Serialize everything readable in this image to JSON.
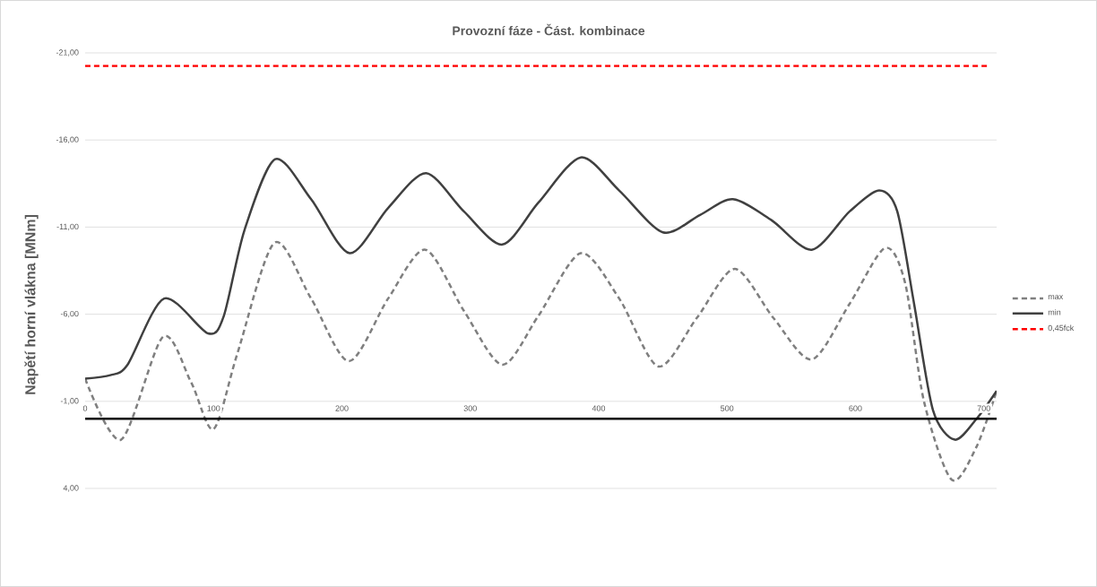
{
  "chart_data": {
    "type": "line",
    "title": "Provozní fáze - Část. kombinace",
    "ylabel": "Napětí horní vlákna [MNm]",
    "xlim": [
      0,
      710
    ],
    "xticks": [
      0,
      100,
      200,
      300,
      400,
      500,
      600,
      700
    ],
    "ylim": [
      4,
      -21
    ],
    "yticks": [
      {
        "value": -21,
        "label": "-21,00"
      },
      {
        "value": -16,
        "label": "-16,00"
      },
      {
        "value": -11,
        "label": "-11,00"
      },
      {
        "value": -6,
        "label": "-6,00"
      },
      {
        "value": -1,
        "label": "-1,00"
      },
      {
        "value": 4,
        "label": "4,00"
      }
    ],
    "grid": "y",
    "legend": "right",
    "series": [
      {
        "name": "max",
        "color": "#7f7f7f",
        "line_style": "dashed",
        "x": [
          0,
          28,
          60.6,
          82.5,
          100,
          118.8,
          147.5,
          176,
          205.5,
          236,
          265,
          295,
          325,
          353,
          386,
          416,
          446.5,
          476.6,
          506,
          536,
          566,
          595.5,
          623,
          638.7,
          653.4,
          675,
          694.4,
          710
        ],
        "values": [
          -2.3,
          1.2,
          -4.7,
          -2.1,
          0.6,
          -3.8,
          -10.1,
          -6.9,
          -3.3,
          -6.9,
          -9.7,
          -6.2,
          -3.1,
          -5.9,
          -9.5,
          -6.9,
          -3.0,
          -5.8,
          -8.6,
          -5.8,
          -3.4,
          -6.6,
          -9.8,
          -7.8,
          -1.0,
          3.5,
          1.6,
          -1.6
        ]
      },
      {
        "name": "min",
        "color": "#404040",
        "line_style": "solid",
        "x": [
          0,
          19.6,
          33,
          61.5,
          95.7,
          108,
          124,
          148,
          176,
          206,
          236,
          265.6,
          295,
          325,
          353,
          386,
          416,
          450,
          479,
          504.6,
          534.6,
          566,
          595.5,
          618.5,
          632.6,
          645.7,
          660.4,
          677.4,
          694.4,
          710
        ],
        "values": [
          -2.3,
          -2.5,
          -3.1,
          -6.9,
          -4.9,
          -5.9,
          -10.8,
          -14.9,
          -12.6,
          -9.5,
          -12.1,
          -14.1,
          -11.9,
          -10.0,
          -12.4,
          -15.0,
          -13.1,
          -10.7,
          -11.7,
          -12.6,
          -11.4,
          -9.7,
          -11.9,
          -13.1,
          -11.9,
          -6.6,
          -0.5,
          1.2,
          0.0,
          -1.6
        ]
      },
      {
        "name": "0,45fck",
        "color": "#ff0000",
        "line_style": "dashed",
        "x": [
          0,
          705
        ],
        "values": [
          -20.25,
          -20.25
        ]
      }
    ]
  }
}
